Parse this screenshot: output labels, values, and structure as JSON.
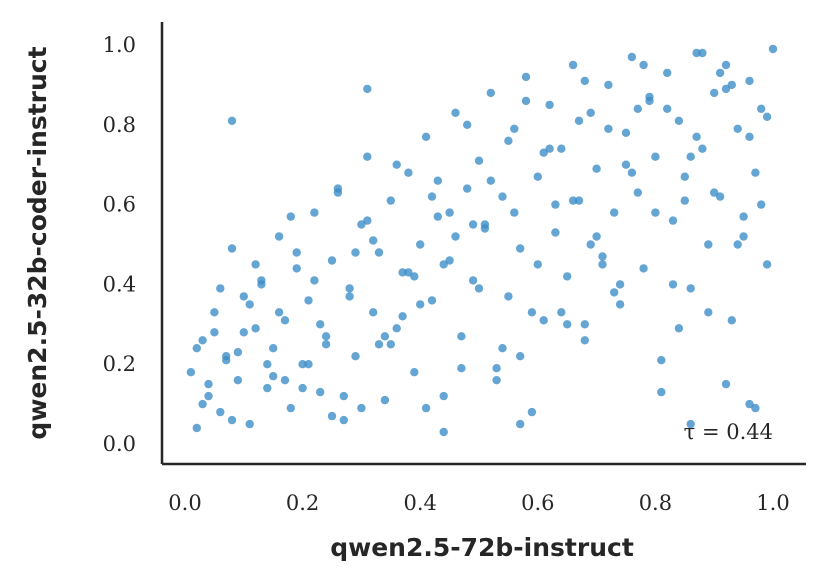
{
  "chart_data": {
    "type": "scatter",
    "title": "",
    "xlabel": "qwen2.5-72b-instruct",
    "ylabel": "qwen2.5-32b-coder-instruct",
    "xlim": [
      -0.03,
      1.05
    ],
    "ylim": [
      -0.05,
      1.06
    ],
    "xticks": [
      "0.0",
      "0.2",
      "0.4",
      "0.6",
      "0.8",
      "1.0"
    ],
    "yticks": [
      "0.0",
      "0.2",
      "0.4",
      "0.6",
      "0.8",
      "1.0"
    ],
    "grid": false,
    "legend": "none",
    "annotation": "τ = 0.44",
    "point_color": "#3a8cc6",
    "x": [
      0.01,
      0.02,
      0.03,
      0.04,
      0.05,
      0.06,
      0.07,
      0.08,
      0.09,
      0.1,
      0.11,
      0.12,
      0.13,
      0.14,
      0.15,
      0.16,
      0.17,
      0.18,
      0.19,
      0.2,
      0.21,
      0.22,
      0.23,
      0.24,
      0.25,
      0.26,
      0.27,
      0.28,
      0.29,
      0.3,
      0.31,
      0.32,
      0.33,
      0.34,
      0.35,
      0.36,
      0.37,
      0.38,
      0.39,
      0.4,
      0.41,
      0.42,
      0.43,
      0.44,
      0.45,
      0.46,
      0.47,
      0.48,
      0.49,
      0.5,
      0.51,
      0.52,
      0.53,
      0.54,
      0.55,
      0.56,
      0.57,
      0.58,
      0.59,
      0.6,
      0.61,
      0.62,
      0.63,
      0.64,
      0.65,
      0.66,
      0.67,
      0.68,
      0.69,
      0.7,
      0.71,
      0.72,
      0.73,
      0.74,
      0.75,
      0.76,
      0.77,
      0.78,
      0.79,
      0.8,
      0.81,
      0.82,
      0.83,
      0.84,
      0.85,
      0.86,
      0.87,
      0.88,
      0.89,
      0.9,
      0.91,
      0.92,
      0.93,
      0.94,
      0.95,
      0.96,
      0.97,
      0.98,
      0.99,
      1.0,
      0.02,
      0.04,
      0.06,
      0.08,
      0.1,
      0.12,
      0.14,
      0.16,
      0.18,
      0.2,
      0.22,
      0.24,
      0.26,
      0.28,
      0.3,
      0.32,
      0.34,
      0.36,
      0.38,
      0.4,
      0.42,
      0.44,
      0.46,
      0.48,
      0.5,
      0.52,
      0.54,
      0.56,
      0.58,
      0.6,
      0.62,
      0.64,
      0.66,
      0.68,
      0.7,
      0.72,
      0.74,
      0.76,
      0.78,
      0.8,
      0.82,
      0.84,
      0.86,
      0.88,
      0.9,
      0.92,
      0.94,
      0.96,
      0.98,
      0.03,
      0.07,
      0.11,
      0.15,
      0.19,
      0.23,
      0.27,
      0.31,
      0.35,
      0.39,
      0.43,
      0.47,
      0.51,
      0.55,
      0.59,
      0.63,
      0.67,
      0.71,
      0.75,
      0.79,
      0.83,
      0.87,
      0.91,
      0.95,
      0.99,
      0.05,
      0.13,
      0.21,
      0.29,
      0.37,
      0.45,
      0.53,
      0.61,
      0.69,
      0.77,
      0.85,
      0.93,
      0.09,
      0.17,
      0.25,
      0.33,
      0.41,
      0.49,
      0.57,
      0.65,
      0.73,
      0.81,
      0.89,
      0.97,
      0.08,
      0.31,
      0.44,
      0.57,
      0.68,
      0.86,
      0.92,
      0.96
    ],
    "y": [
      0.18,
      0.04,
      0.26,
      0.12,
      0.33,
      0.08,
      0.21,
      0.49,
      0.16,
      0.37,
      0.05,
      0.29,
      0.41,
      0.14,
      0.24,
      0.52,
      0.31,
      0.09,
      0.44,
      0.2,
      0.36,
      0.58,
      0.13,
      0.27,
      0.46,
      0.64,
      0.06,
      0.39,
      0.22,
      0.55,
      0.72,
      0.33,
      0.48,
      0.11,
      0.61,
      0.29,
      0.43,
      0.68,
      0.18,
      0.5,
      0.77,
      0.36,
      0.57,
      0.03,
      0.46,
      0.83,
      0.27,
      0.64,
      0.41,
      0.71,
      0.55,
      0.88,
      0.19,
      0.62,
      0.37,
      0.79,
      0.49,
      0.92,
      0.08,
      0.67,
      0.31,
      0.85,
      0.53,
      0.74,
      0.42,
      0.95,
      0.61,
      0.26,
      0.83,
      0.69,
      0.47,
      0.9,
      0.58,
      0.35,
      0.78,
      0.97,
      0.63,
      0.44,
      0.86,
      0.72,
      0.21,
      0.93,
      0.56,
      0.81,
      0.67,
      0.39,
      0.98,
      0.74,
      0.5,
      0.88,
      0.62,
      0.95,
      0.31,
      0.79,
      0.57,
      0.91,
      0.68,
      0.84,
      0.45,
      0.99,
      0.24,
      0.15,
      0.39,
      0.06,
      0.28,
      0.45,
      0.2,
      0.33,
      0.57,
      0.14,
      0.41,
      0.25,
      0.63,
      0.37,
      0.09,
      0.51,
      0.27,
      0.7,
      0.43,
      0.35,
      0.62,
      0.12,
      0.52,
      0.8,
      0.39,
      0.66,
      0.24,
      0.58,
      0.86,
      0.45,
      0.74,
      0.33,
      0.61,
      0.91,
      0.52,
      0.79,
      0.4,
      0.68,
      0.95,
      0.58,
      0.84,
      0.29,
      0.72,
      0.98,
      0.63,
      0.89,
      0.5,
      0.77,
      0.6,
      0.1,
      0.22,
      0.35,
      0.17,
      0.48,
      0.3,
      0.12,
      0.56,
      0.25,
      0.42,
      0.66,
      0.19,
      0.54,
      0.76,
      0.33,
      0.6,
      0.81,
      0.45,
      0.7,
      0.87,
      0.4,
      0.77,
      0.93,
      0.52,
      0.82,
      0.28,
      0.4,
      0.2,
      0.48,
      0.32,
      0.58,
      0.16,
      0.73,
      0.5,
      0.84,
      0.61,
      0.9,
      0.23,
      0.16,
      0.07,
      0.25,
      0.09,
      0.55,
      0.05,
      0.3,
      0.38,
      0.13,
      0.33,
      0.09,
      0.81,
      0.89,
      0.45,
      0.22,
      0.3,
      0.05,
      0.15,
      0.1
    ]
  }
}
